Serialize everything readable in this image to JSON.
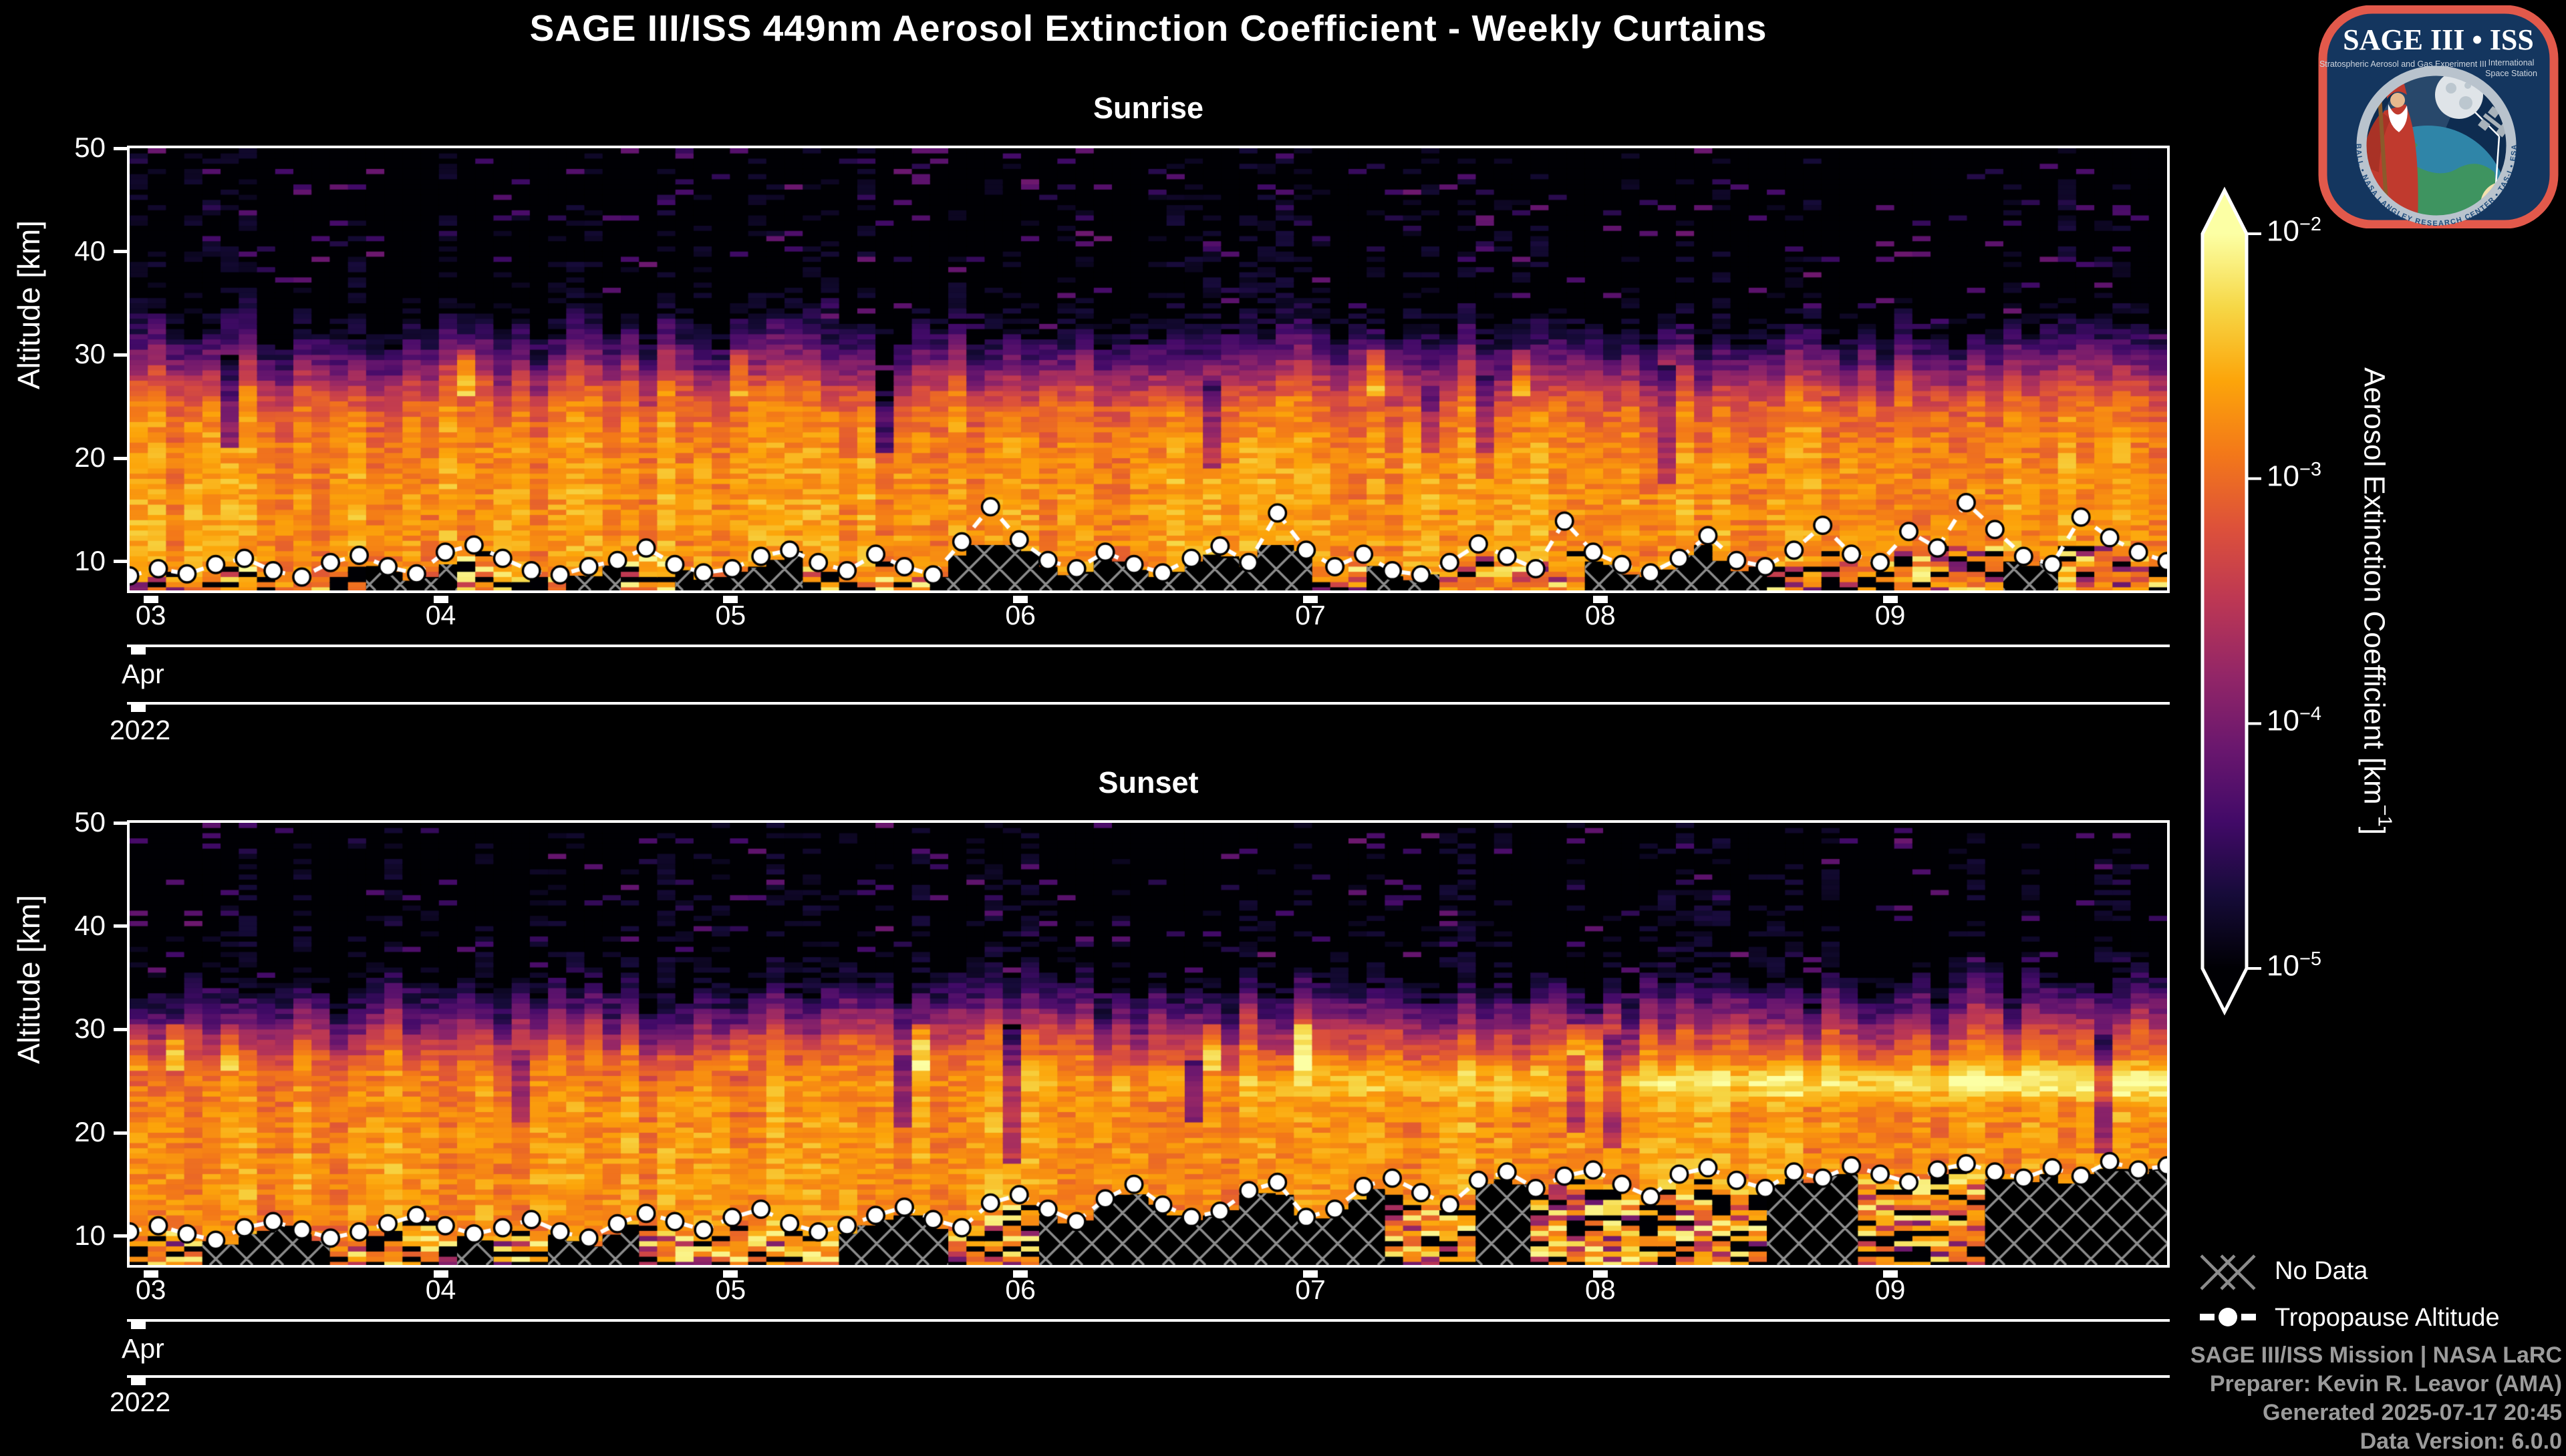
{
  "chart_data": {
    "type": "heatmap",
    "title": "SAGE III/ISS 449nm Aerosol Extinction Coefficient - Weekly Curtains",
    "x_axis": {
      "month": "Apr",
      "year": "2022",
      "tick_days": [
        "03",
        "04",
        "05",
        "06",
        "07",
        "08",
        "09"
      ],
      "range_days": [
        2.927,
        9.955
      ]
    },
    "y_axis": {
      "label": "Altitude [km]",
      "ticks": [
        10,
        20,
        30,
        40,
        50
      ],
      "range_km": [
        7.2,
        50
      ]
    },
    "colorbar": {
      "label_pre": "Aerosol Extinction Coefficient [km",
      "label_exp": "−1",
      "label_post": "]",
      "scale": "log",
      "min": 1e-05,
      "max": 0.01,
      "extend": "both",
      "ticks": [
        {
          "base": "10",
          "exp": "−2"
        },
        {
          "base": "10",
          "exp": "−3"
        },
        {
          "base": "10",
          "exp": "−4"
        },
        {
          "base": "10",
          "exp": "−5"
        }
      ],
      "colormap": "inferno",
      "colormap_stops": [
        "#000004",
        "#160b39",
        "#420a68",
        "#6a176e",
        "#932667",
        "#bc3754",
        "#dd513a",
        "#f37819",
        "#fca50a",
        "#f6d746",
        "#fcffa4"
      ]
    },
    "legend": {
      "no_data": "No Data",
      "tropopause": "Tropopause Altitude"
    },
    "panels": [
      {
        "title": "Sunrise",
        "seed": 20220403,
        "columns": 112,
        "profile_log10": [
          [
            7.2,
            -2.8
          ],
          [
            10,
            -2.73
          ],
          [
            14,
            -2.7
          ],
          [
            18,
            -2.73
          ],
          [
            22,
            -2.82
          ],
          [
            25,
            -3.0
          ],
          [
            27,
            -3.4
          ],
          [
            29,
            -3.95
          ],
          [
            31,
            -4.45
          ],
          [
            33,
            -4.85
          ],
          [
            35,
            -5.05
          ],
          [
            50,
            -5.12
          ]
        ],
        "features": {
          "speckle_p": 0.05,
          "plume_p": 0.06,
          "band_shift_km": 1.4,
          "right_lift_km": 0,
          "hatch_cap_km": 11.6,
          "hatch_density_base": 0.45,
          "hatch_density_slope": 0
        },
        "tropopause_km": [
          8.6,
          9.3,
          8.8,
          9.7,
          10.3,
          9.1,
          8.5,
          9.9,
          10.6,
          9.5,
          8.8,
          10.9,
          11.6,
          10.3,
          9.1,
          8.7,
          9.5,
          10.1,
          11.3,
          9.7,
          8.9,
          9.3,
          10.5,
          11.1,
          9.9,
          9.1,
          10.7,
          9.5,
          8.7,
          11.9,
          15.3,
          12.1,
          10.1,
          9.3,
          10.9,
          9.7,
          8.9,
          10.3,
          11.5,
          9.9,
          14.7,
          11.1,
          9.5,
          10.7,
          9.1,
          8.7,
          9.9,
          11.7,
          10.5,
          9.3,
          13.9,
          10.9,
          9.7,
          8.9,
          10.3,
          12.5,
          10.1,
          9.5,
          11.1,
          13.5,
          10.7,
          9.9,
          12.9,
          11.3,
          15.7,
          13.1,
          10.5,
          9.7,
          14.3,
          12.3,
          10.9,
          10.0
        ]
      },
      {
        "title": "Sunset",
        "seed": 20220404,
        "columns": 112,
        "profile_log10": [
          [
            7.2,
            -2.85
          ],
          [
            10,
            -2.78
          ],
          [
            14,
            -2.72
          ],
          [
            18,
            -2.72
          ],
          [
            22,
            -2.78
          ],
          [
            24,
            -2.82
          ],
          [
            26,
            -2.95
          ],
          [
            28,
            -3.25
          ],
          [
            29.5,
            -3.65
          ],
          [
            31,
            -4.1
          ],
          [
            33,
            -4.6
          ],
          [
            35,
            -5.0
          ],
          [
            50,
            -5.12
          ]
        ],
        "features": {
          "speckle_p": 0.045,
          "plume_p": 0.09,
          "band_shift_km": 1.6,
          "right_lift_km": 1.0,
          "hatch_cap_km": 16.8,
          "hatch_density_base": 0.4,
          "hatch_density_slope": 0.35,
          "bright_layer": {
            "alt_km": 24.9,
            "sigma_km": 1.25,
            "max_boost": 0.85,
            "start_frac": 0.3
          }
        },
        "tropopause_km": [
          10.4,
          11.0,
          10.2,
          9.6,
          10.8,
          11.4,
          10.6,
          9.8,
          10.4,
          11.2,
          12.0,
          11.0,
          10.2,
          10.8,
          11.6,
          10.4,
          9.8,
          11.2,
          12.2,
          11.4,
          10.6,
          11.8,
          12.6,
          11.2,
          10.4,
          11.0,
          12.0,
          12.8,
          11.6,
          10.8,
          13.2,
          14.0,
          12.6,
          11.4,
          13.6,
          15.0,
          13.0,
          11.8,
          12.4,
          14.4,
          15.2,
          11.8,
          12.6,
          14.8,
          15.6,
          14.2,
          13.0,
          15.4,
          16.2,
          14.6,
          15.8,
          16.4,
          15.0,
          13.8,
          16.0,
          16.6,
          15.4,
          14.6,
          16.2,
          15.6,
          16.8,
          16.0,
          15.2,
          16.4,
          17.0,
          16.2,
          15.6,
          16.6,
          15.8,
          17.2,
          16.4,
          16.8
        ]
      }
    ]
  },
  "legend": {
    "no_data": "No Data",
    "tropopause": "Tropopause Altitude"
  },
  "credits": [
    "SAGE III/ISS Mission | NASA LaRC",
    "Preparer: Kevin R. Leavor (AMA)",
    "Generated 2025-07-17 20:45",
    "Data Version: 6.0.0"
  ],
  "logo": {
    "title": "SAGE III • ISS",
    "subtitle_left": "Stratospheric Aerosol and Gas Experiment III",
    "subtitle_right1": "International",
    "subtitle_right2": "Space Station",
    "ring_text": "BALL  •  NASA LANGLEY RESEARCH CENTER  •  TAS-I  •  ESA",
    "border_color": "#e2594b",
    "field_color": "#14365f",
    "ring_color": "#b9c3cd"
  },
  "style_colors": {
    "background": "#000000",
    "text": "#ffffff",
    "credits_gray": "#9b9b9b",
    "hatch_gray": "#8c8c8c"
  }
}
